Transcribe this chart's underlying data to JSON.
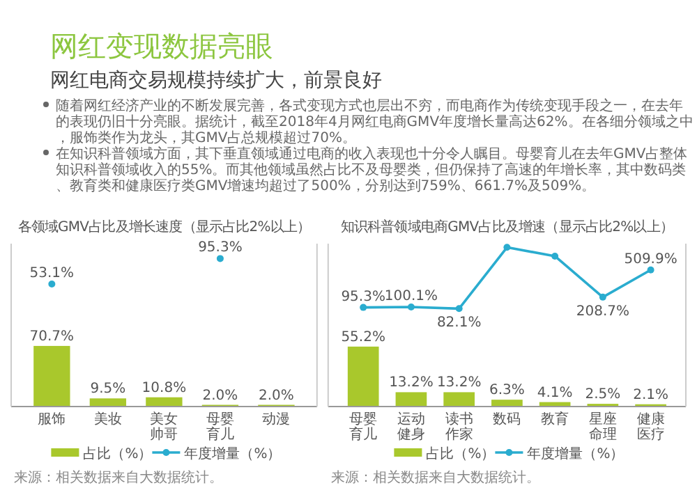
{
  "chart_data": [
    {
      "type": "other",
      "title": "网红变现数据亮眼",
      "subtitle": "网红电商交易规模持续扩大，前景良好",
      "annotations": [
        "随着网红经济产业的不断发展完善，各式变现方式也层出不穷，而电商作为传统变现手段之一，在去年的表现仍旧十分亮眼。据统计，截至2018年4月网红电商GMV年度增长量高达62%。在各细分领域之中，服饰类作为龙头，其GMV占总规模超过70%。",
        "在知识科普领域方面，其下垂直领域通过电商的收入表现也十分令人瞩目。母婴育儿在去年GMV占整体知识科普领域收入的55%。而其他领域虽然占比不及母婴类，但仍保持了高速的年增长率，其中数码类、教育类和健康医疗类GMV增速均超过了500%，分别达到759%、661.7%及509%。"
      ]
    },
    {
      "type": "bar",
      "title": "各领域GMV占比及增长速度（显示占比2%以上）",
      "categories": [
        "服饰",
        "美妆",
        "美女帅哥",
        "母婴育儿",
        "动漫"
      ],
      "ylim": [
        0,
        190
      ],
      "y2lim": [
        -150,
        120
      ],
      "legend": "bottom",
      "marker": "circle",
      "annotations": [
        "来源：相关数据来自大数据统计。"
      ],
      "series": [
        {
          "name": "占比（%）",
          "type": "bar",
          "color": "#a9c82c",
          "values": [
            70.7,
            9.5,
            10.8,
            2.0,
            2.0
          ],
          "value_labels": [
            "70.7%",
            "9.5%",
            "10.8%",
            "2.0%",
            "2.0%"
          ]
        },
        {
          "name": "年度增量（%）",
          "type": "scatter",
          "axis": "y2",
          "color": "#2aaccf",
          "values": [
            53.1,
            null,
            null,
            95.3,
            null
          ],
          "value_labels": [
            "53.1%",
            null,
            null,
            "95.3%",
            null
          ]
        }
      ]
    },
    {
      "type": "bar",
      "title": "知识科普领域电商GMV占比及增速（显示占比2%以上）",
      "categories": [
        "母婴育儿",
        "运动健身",
        "读书作家",
        "数码",
        "教育",
        "星座命理",
        "健康医疗"
      ],
      "ylim": [
        0,
        150
      ],
      "y2lim": [
        -1000,
        800
      ],
      "legend": "bottom",
      "marker": "circle",
      "annotations": [
        "来源：相关数据来自大数据统计。"
      ],
      "series": [
        {
          "name": "占比（%）",
          "type": "bar",
          "color": "#a9c82c",
          "values": [
            55.2,
            13.2,
            13.2,
            6.3,
            4.1,
            2.5,
            2.1
          ],
          "value_labels": [
            "55.2%",
            "13.2%",
            "13.2%",
            "6.3%",
            "4.1%",
            "2.5%",
            "2.1%"
          ]
        },
        {
          "name": "年度增量（%）",
          "type": "line",
          "axis": "y2",
          "color": "#2aaccf",
          "values": [
            95.3,
            100.1,
            82.1,
            759,
            661.7,
            208.7,
            509.9
          ],
          "value_labels": [
            "95.3%",
            "100.1%",
            "82.1%",
            null,
            null,
            "208.7%",
            "509.9%"
          ]
        }
      ]
    }
  ]
}
